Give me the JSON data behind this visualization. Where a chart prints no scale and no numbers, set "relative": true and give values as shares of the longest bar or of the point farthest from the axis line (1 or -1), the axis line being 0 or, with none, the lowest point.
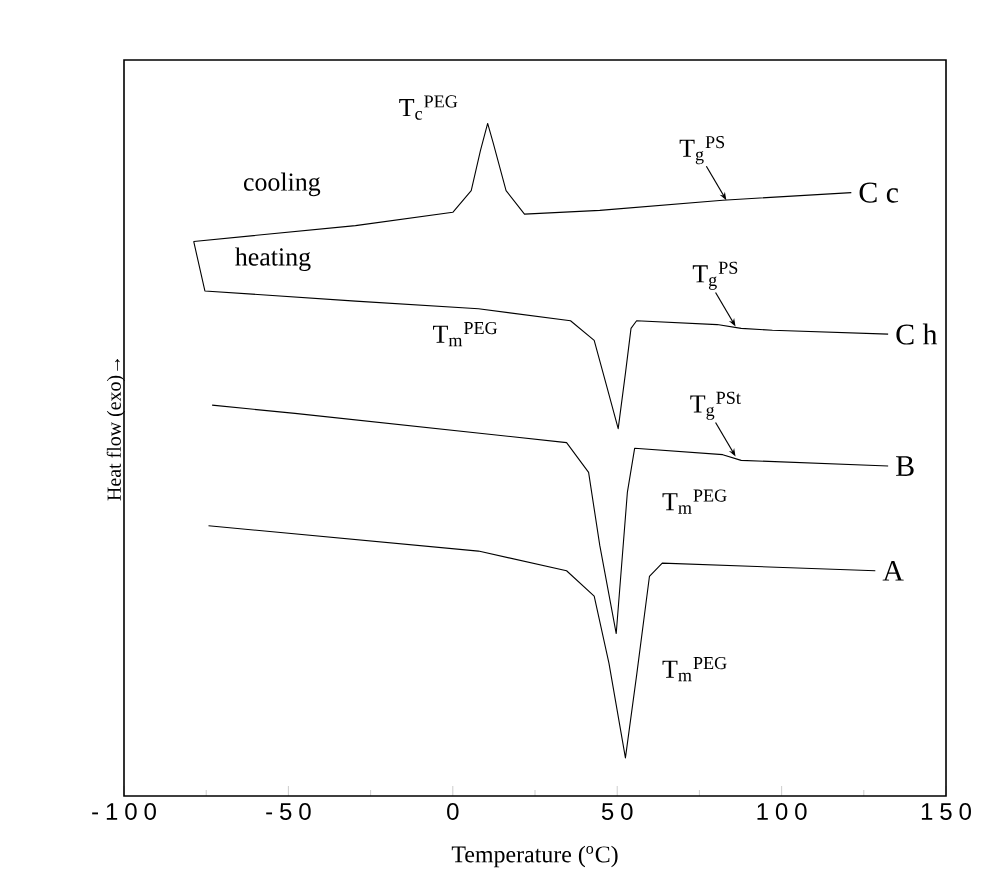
{
  "chart_data": {
    "type": "line",
    "relative": true,
    "xlabel": "Temperature ($^{o}$C)",
    "ylabel": "Heat flow (exo)→",
    "xlim": [
      -100,
      150
    ],
    "xticks": [
      -100,
      -50,
      0,
      50,
      100,
      150
    ],
    "series": [
      {
        "name": "C c",
        "color": "#000000",
        "x": [
          -78.8,
          -29.6,
          0,
          5.6,
          8.4,
          10.6,
          12.3,
          16.2,
          21.8,
          44.7,
          82.1,
          121.2
        ],
        "values": [
          0.814,
          0.839,
          0.86,
          0.894,
          0.957,
          1.0,
          0.969,
          0.894,
          0.857,
          0.863,
          0.879,
          0.891
        ]
      },
      {
        "name": "C h",
        "color": "#000000",
        "x": [
          -78.8,
          -75.4,
          -29.6,
          7.8,
          35.8,
          43.0,
          46.9,
          50.3,
          52.5,
          54.2,
          55.9,
          80.4,
          87.7,
          97.2,
          132.4
        ],
        "values": [
          0.814,
          0.736,
          0.72,
          0.708,
          0.689,
          0.658,
          0.584,
          0.519,
          0.606,
          0.677,
          0.689,
          0.683,
          0.677,
          0.674,
          0.668
        ]
      },
      {
        "name": "B",
        "color": "#000000",
        "x": [
          -73.2,
          -48.0,
          34.6,
          41.3,
          44.7,
          49.7,
          53.1,
          55.3,
          82.1,
          87.7,
          132.4
        ],
        "values": [
          0.556,
          0.543,
          0.497,
          0.45,
          0.335,
          0.196,
          0.419,
          0.488,
          0.478,
          0.469,
          0.46
        ]
      },
      {
        "name": "A",
        "color": "#000000",
        "x": [
          -74.3,
          7.8,
          34.6,
          43.0,
          47.5,
          52.5,
          55.9,
          59.8,
          63.7,
          128.5
        ],
        "values": [
          0.366,
          0.326,
          0.295,
          0.255,
          0.149,
          0,
          0.13,
          0.286,
          0.307,
          0.295
        ]
      }
    ],
    "annotations": [
      "T$_{c}$$^{PEG}$",
      "T$_{g}$$^{PS}$",
      "T$_{g}$$^{PS}$",
      "T$_{g}$$^{PSt}$",
      "T$_{m}$$^{PEG}$",
      "T$_{m}$$^{PEG}$",
      "T$_{m}$$^{PEG}$",
      "cooling",
      "heating"
    ]
  }
}
